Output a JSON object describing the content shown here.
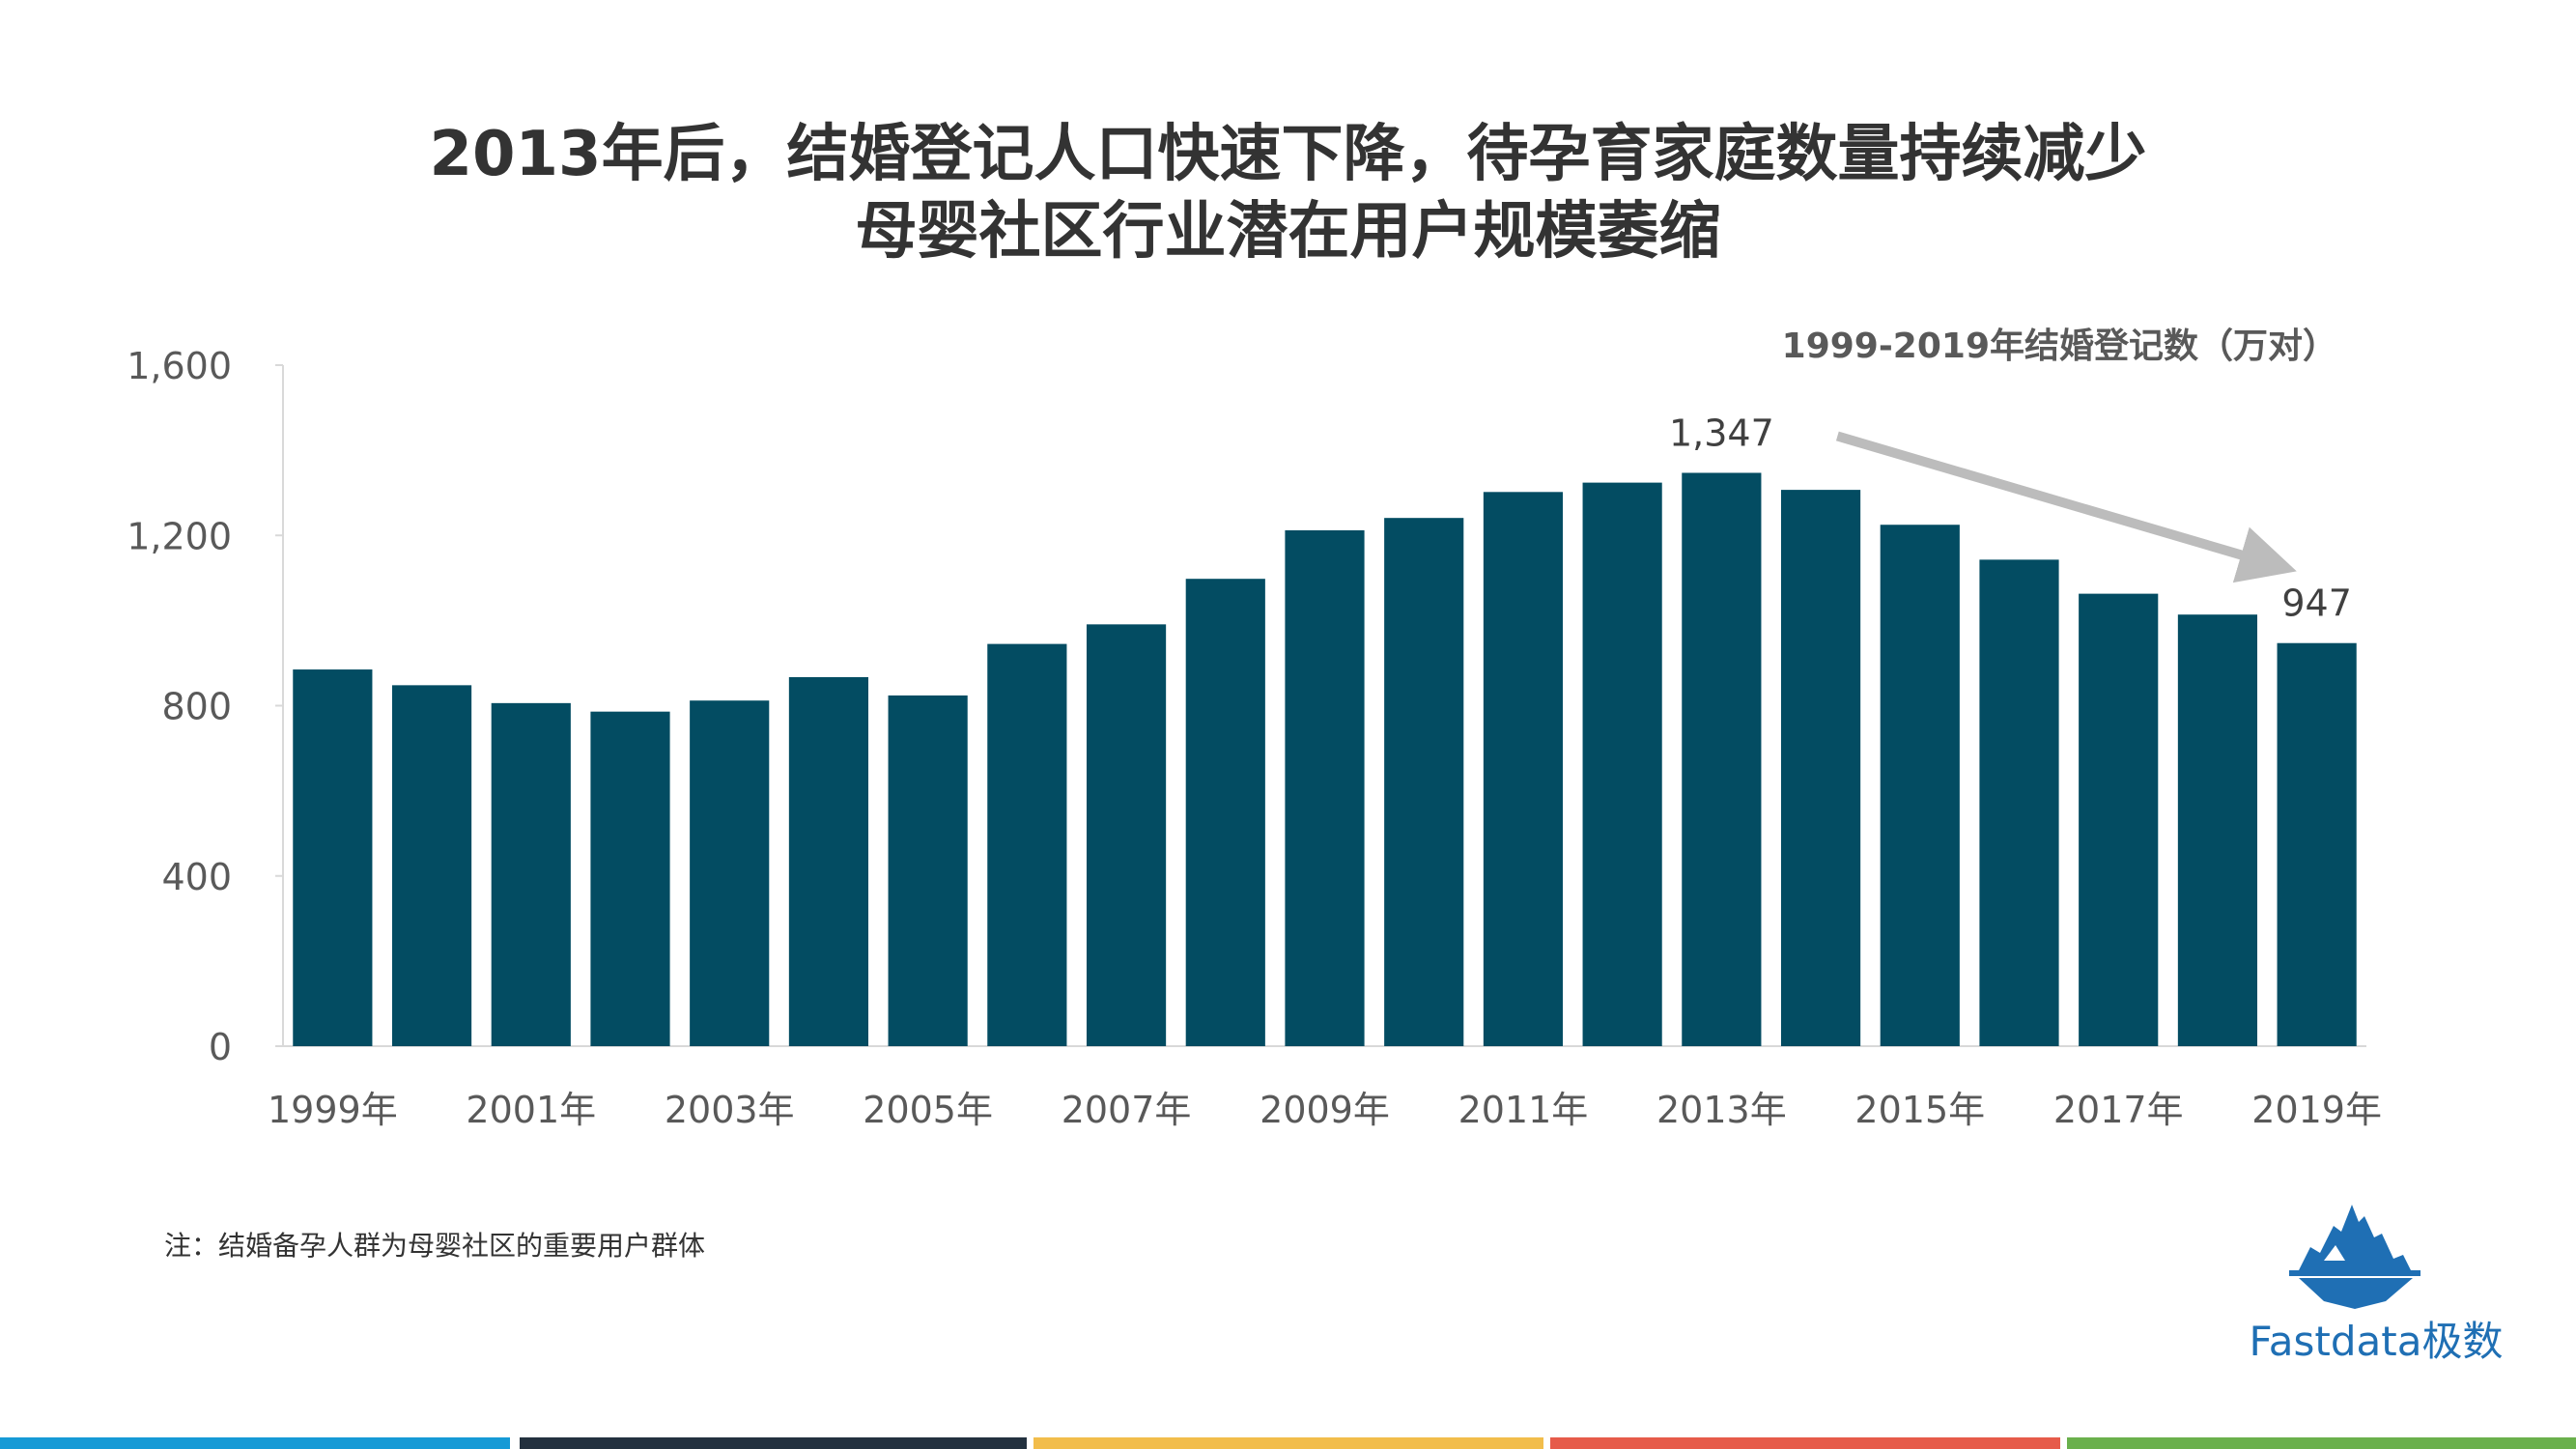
{
  "title": {
    "line1": "2013年后，结婚登记人口快速下降，待孕育家庭数量持续减少",
    "line2": "母婴社区行业潜在用户规模萎缩"
  },
  "note": "注：结婚备孕人群为母婴社区的重要用户群体",
  "logo": {
    "text": "Fastdata极数",
    "icon": "iceberg-icon"
  },
  "colors": {
    "bar": "#034c62",
    "arrow": "#bcbcbc",
    "axis_text": "#595959",
    "title": "#333333",
    "bottom_bars": [
      "#169ad6",
      "#23313f",
      "#f2bd4b",
      "#e65b4a",
      "#6ab04c"
    ]
  },
  "chart_data": {
    "type": "bar",
    "title": "1999-2019年结婚登记数（万对）",
    "categories": [
      "1999年",
      "2000年",
      "2001年",
      "2002年",
      "2003年",
      "2004年",
      "2005年",
      "2006年",
      "2007年",
      "2008年",
      "2009年",
      "2010年",
      "2011年",
      "2012年",
      "2013年",
      "2014年",
      "2015年",
      "2016年",
      "2017年",
      "2018年",
      "2019年"
    ],
    "x_tick_labels": [
      "1999年",
      "2001年",
      "2003年",
      "2005年",
      "2007年",
      "2009年",
      "2011年",
      "2013年",
      "2015年",
      "2017年",
      "2019年"
    ],
    "values": [
      885,
      848,
      806,
      786,
      812,
      867,
      824,
      945,
      991,
      1098,
      1212,
      1241,
      1302,
      1324,
      1347,
      1307,
      1225,
      1143,
      1063,
      1014,
      947
    ],
    "y_ticks": [
      0,
      400,
      800,
      1200,
      1600
    ],
    "y_tick_labels": [
      "0",
      "400",
      "800",
      "1,200",
      "1,600"
    ],
    "ylim": [
      0,
      1600
    ],
    "data_labels": [
      {
        "category": "2013年",
        "text": "1,347"
      },
      {
        "category": "2019年",
        "text": "947"
      }
    ],
    "annotation": {
      "type": "arrow",
      "from": "2013年",
      "to": "2019年"
    },
    "xlabel": "",
    "ylabel": "",
    "grid": false
  }
}
